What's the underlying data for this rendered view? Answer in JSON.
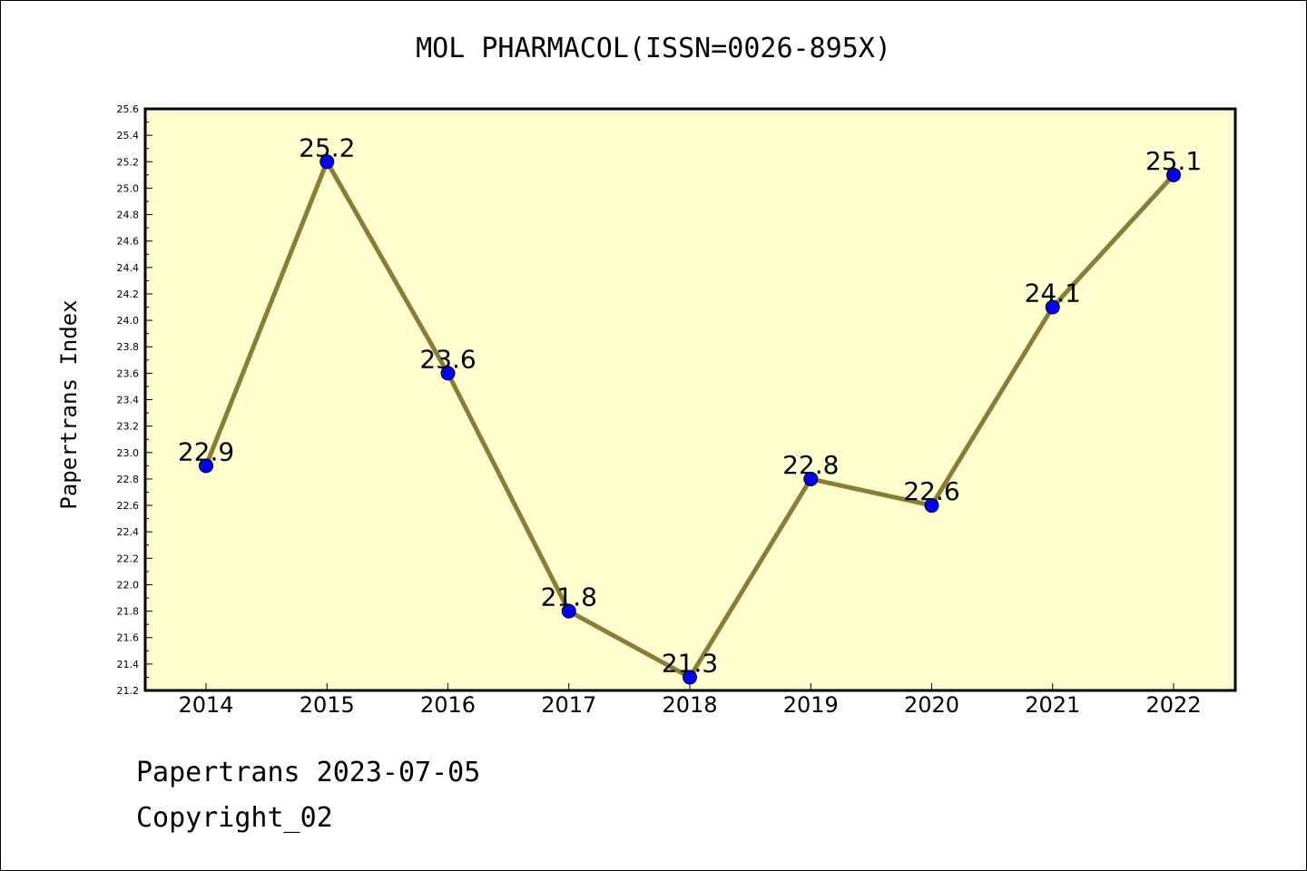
{
  "header": {
    "title": "MOL PHARMACOL(ISSN=0026-895X)"
  },
  "footer": {
    "line1": "Papertrans 2023-07-05",
    "line2": "Copyright_02"
  },
  "chart_data": {
    "type": "line",
    "title": "MOL PHARMACOL(ISSN=0026-895X)",
    "xlabel": "",
    "ylabel": "Papertrans Index",
    "x": [
      "2014",
      "2015",
      "2016",
      "2017",
      "2018",
      "2019",
      "2020",
      "2021",
      "2022"
    ],
    "series": [
      {
        "values": [
          22.9,
          25.2,
          23.6,
          21.8,
          21.3,
          22.8,
          22.6,
          24.1,
          25.1
        ]
      }
    ],
    "data_labels": [
      "22.9",
      "25.2",
      "23.6",
      "21.8",
      "21.3",
      "22.8",
      "22.6",
      "24.1",
      "25.1"
    ],
    "ylim": [
      21.2,
      25.6
    ],
    "y_ticks": [
      "21.2",
      "21.4",
      "21.6",
      "21.8",
      "22.0",
      "22.2",
      "22.4",
      "22.6",
      "22.8",
      "23.0",
      "23.2",
      "23.4",
      "23.6",
      "23.8",
      "24.0",
      "24.2",
      "24.4",
      "24.6",
      "24.8",
      "25.0",
      "25.2",
      "25.4",
      "25.6"
    ],
    "grid": false,
    "colors": {
      "plot_background": "#ffffd0",
      "line": "#8b7d35",
      "marker": "#0000ff"
    }
  }
}
